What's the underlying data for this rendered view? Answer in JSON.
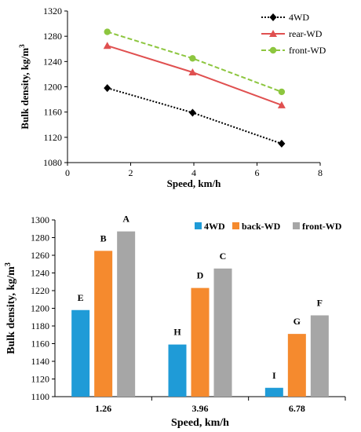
{
  "chart_data": [
    {
      "type": "line",
      "xlabel": "Speed, km/h",
      "ylabel": "Bulk density, kg/m",
      "ylabel_sup": "3",
      "xlim": [
        0,
        8
      ],
      "ylim": [
        1080,
        1320
      ],
      "xticks": [
        0,
        2,
        4,
        6,
        8
      ],
      "yticks": [
        1080,
        1120,
        1160,
        1200,
        1240,
        1280,
        1320
      ],
      "legend_position": "top-right",
      "grid": false,
      "series": [
        {
          "name": "4WD",
          "color": "#000000",
          "style": "dotted",
          "marker": "diamond",
          "x": [
            1.26,
            3.96,
            6.78
          ],
          "y": [
            1198,
            1159,
            1110
          ]
        },
        {
          "name": "rear-WD",
          "color": "#e05050",
          "style": "solid",
          "marker": "triangle",
          "x": [
            1.26,
            3.96,
            6.78
          ],
          "y": [
            1265,
            1223,
            1171
          ]
        },
        {
          "name": "front-WD",
          "color": "#8dc63f",
          "style": "dashed",
          "marker": "circle",
          "x": [
            1.26,
            3.96,
            6.78
          ],
          "y": [
            1287,
            1245,
            1192
          ]
        }
      ]
    },
    {
      "type": "bar",
      "xlabel": "Speed, km/h",
      "ylabel": "Bulk density, kg/m",
      "ylabel_sup": "3",
      "categories": [
        "1.26",
        "3.96",
        "6.78"
      ],
      "ylim": [
        1100,
        1300
      ],
      "yticks": [
        1100,
        1120,
        1140,
        1160,
        1180,
        1200,
        1220,
        1240,
        1260,
        1280,
        1300
      ],
      "legend_position": "top-right",
      "grid": false,
      "series": [
        {
          "name": "4WD",
          "color": "#1f9bd7",
          "values": [
            1198,
            1159,
            1110
          ],
          "labels": [
            "E",
            "H",
            "I"
          ]
        },
        {
          "name": "back-WD",
          "color": "#f58a2e",
          "values": [
            1265,
            1223,
            1171
          ],
          "labels": [
            "B",
            "D",
            "G"
          ]
        },
        {
          "name": "front-WD",
          "color": "#a6a6a6",
          "values": [
            1287,
            1245,
            1192
          ],
          "labels": [
            "A",
            "C",
            "F"
          ]
        }
      ]
    }
  ]
}
